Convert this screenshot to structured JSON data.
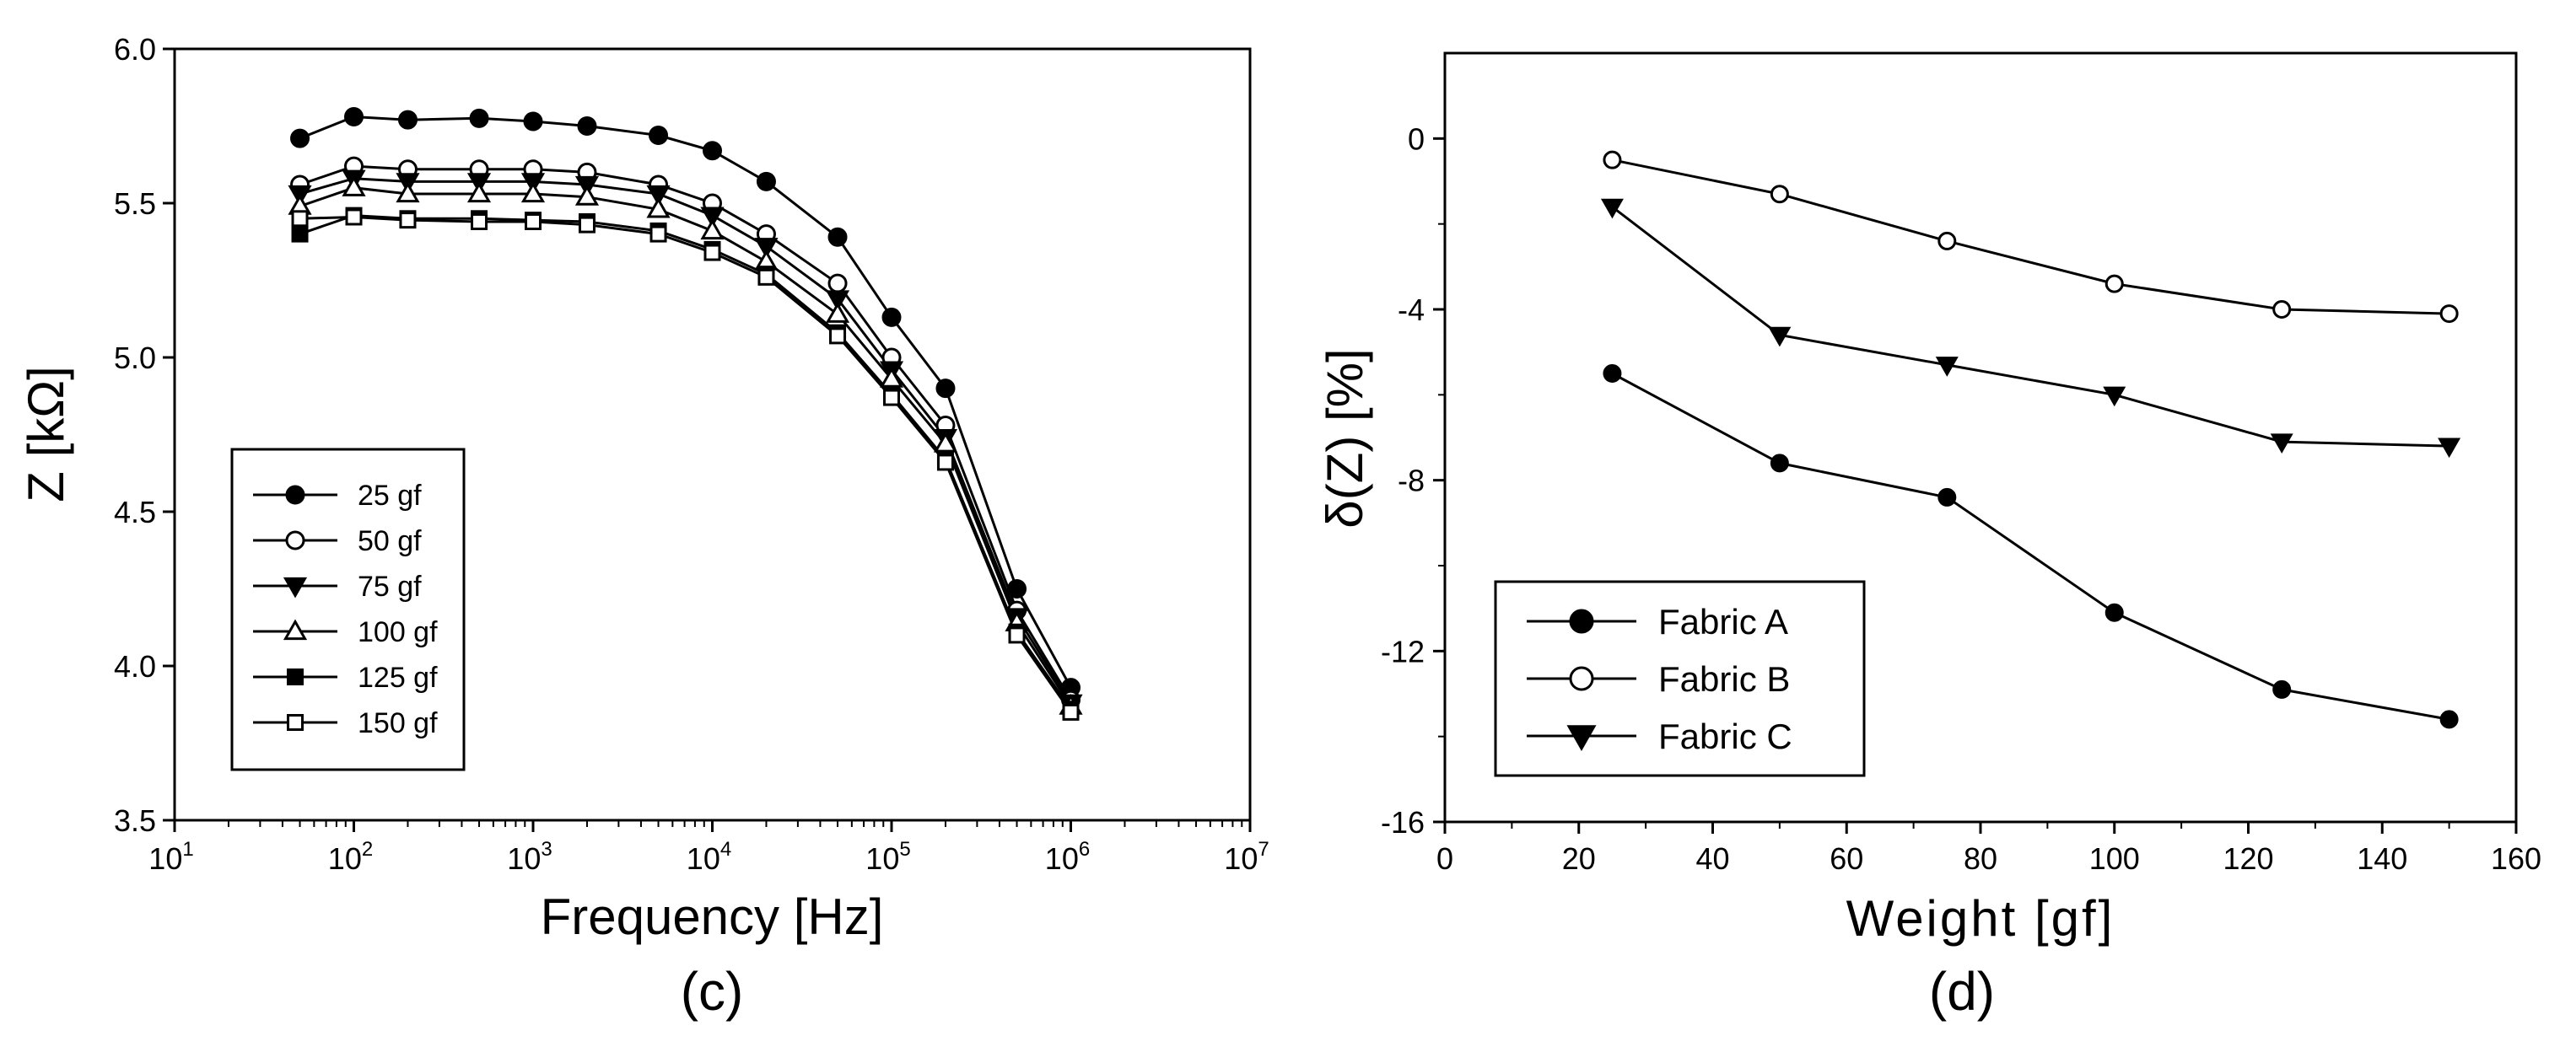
{
  "chart_data": [
    {
      "panel_label": "(c)",
      "type": "line",
      "xlabel": "Frequency [Hz]",
      "ylabel": "Z [kΩ]",
      "x_scale": "log",
      "xlim": [
        10,
        10000000
      ],
      "ylim": [
        3.5,
        6.0
      ],
      "x_ticks": [
        {
          "base": "10",
          "exp": "1",
          "value": 10
        },
        {
          "base": "10",
          "exp": "2",
          "value": 100
        },
        {
          "base": "10",
          "exp": "3",
          "value": 1000
        },
        {
          "base": "10",
          "exp": "4",
          "value": 10000
        },
        {
          "base": "10",
          "exp": "5",
          "value": 100000
        },
        {
          "base": "10",
          "exp": "6",
          "value": 1000000
        },
        {
          "base": "10",
          "exp": "7",
          "value": 10000000
        }
      ],
      "y_ticks": [
        "3.5",
        "4.0",
        "4.5",
        "5.0",
        "5.5",
        "6.0"
      ],
      "legend_position": "lower-left",
      "x": [
        50,
        100,
        200,
        500,
        1000,
        2000,
        5000,
        10000,
        20000,
        50000,
        100000,
        200000,
        500000,
        1000000
      ],
      "series": [
        {
          "name": "25 gf",
          "marker": "circle-filled",
          "values": [
            5.71,
            5.78,
            5.77,
            5.775,
            5.765,
            5.75,
            5.72,
            5.67,
            5.57,
            5.39,
            5.13,
            4.9,
            4.25,
            3.93
          ]
        },
        {
          "name": "50 gf",
          "marker": "circle-open",
          "values": [
            5.56,
            5.62,
            5.61,
            5.61,
            5.61,
            5.6,
            5.56,
            5.5,
            5.4,
            5.24,
            5.0,
            4.78,
            4.18,
            3.89
          ]
        },
        {
          "name": "75 gf",
          "marker": "triangle-down-filled",
          "values": [
            5.53,
            5.58,
            5.57,
            5.57,
            5.57,
            5.56,
            5.53,
            5.46,
            5.36,
            5.19,
            4.96,
            4.74,
            4.16,
            3.88
          ]
        },
        {
          "name": "100 gf",
          "marker": "triangle-up-open",
          "values": [
            5.49,
            5.55,
            5.53,
            5.53,
            5.53,
            5.52,
            5.48,
            5.41,
            5.31,
            5.14,
            4.93,
            4.72,
            4.14,
            3.87
          ]
        },
        {
          "name": "125 gf",
          "marker": "square-filled",
          "values": [
            5.4,
            5.46,
            5.45,
            5.45,
            5.445,
            5.44,
            5.41,
            5.35,
            5.27,
            5.08,
            4.88,
            4.67,
            4.11,
            3.86
          ]
        },
        {
          "name": "150 gf",
          "marker": "square-open",
          "values": [
            5.45,
            5.455,
            5.445,
            5.44,
            5.44,
            5.43,
            5.4,
            5.34,
            5.26,
            5.07,
            4.87,
            4.66,
            4.1,
            3.85
          ]
        }
      ]
    },
    {
      "panel_label": "(d)",
      "type": "line",
      "xlabel": "Weight [gf]",
      "ylabel": "δ(Z) [%]",
      "xlim": [
        0,
        160
      ],
      "ylim": [
        -16,
        2
      ],
      "x_ticks": [
        "0",
        "20",
        "40",
        "60",
        "80",
        "100",
        "120",
        "140",
        "160"
      ],
      "y_ticks": [
        "0",
        "-4",
        "-8",
        "-12",
        "-16"
      ],
      "legend_position": "lower-left",
      "x": [
        25,
        50,
        75,
        100,
        125,
        150
      ],
      "series": [
        {
          "name": "Fabric A",
          "marker": "circle-filled",
          "values": [
            -5.5,
            -7.6,
            -8.4,
            -11.1,
            -12.9,
            -13.6
          ]
        },
        {
          "name": "Fabric B",
          "marker": "circle-open",
          "values": [
            -0.5,
            -1.3,
            -2.4,
            -3.4,
            -4.0,
            -4.1
          ]
        },
        {
          "name": "Fabric C",
          "marker": "triangle-down-filled",
          "values": [
            -1.6,
            -4.6,
            -5.3,
            -6.0,
            -7.1,
            -7.2
          ]
        }
      ]
    }
  ]
}
